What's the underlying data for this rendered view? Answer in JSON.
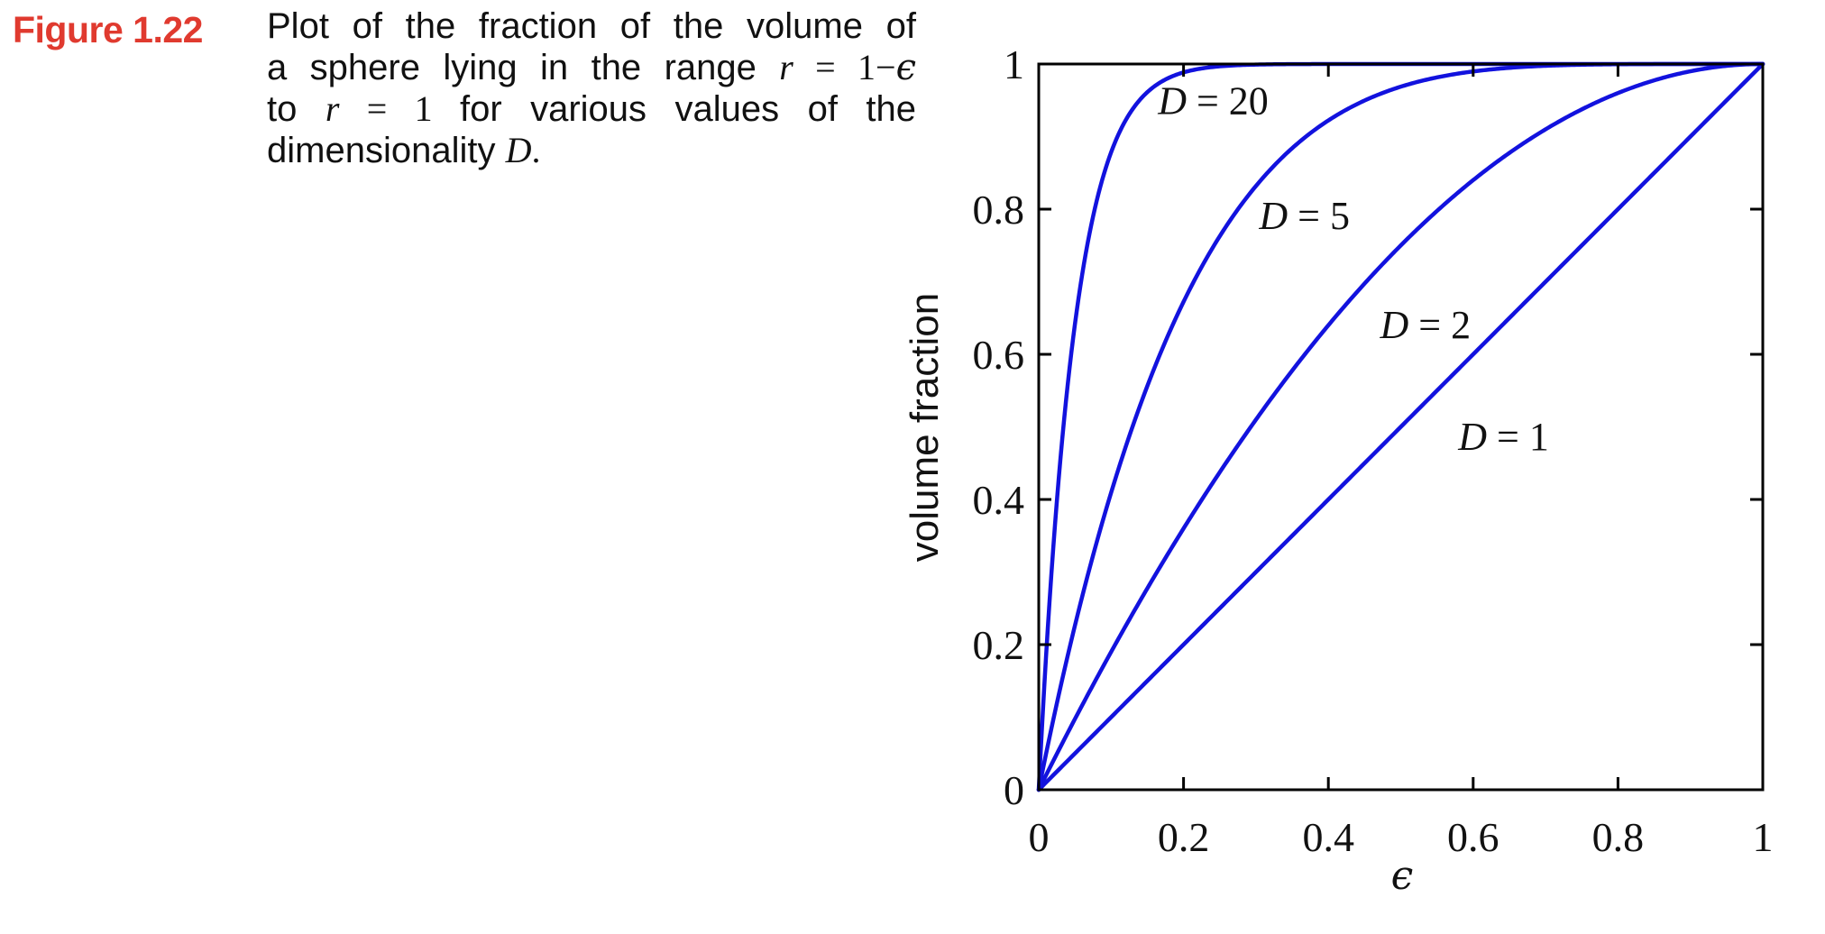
{
  "figure": {
    "label": "Figure 1.22",
    "label_color": "#E03A2F",
    "caption_lines": [
      [
        {
          "t": "Plot of the fraction of the volume of",
          "s": "sans"
        }
      ],
      [
        {
          "t": "a sphere lying in the range ",
          "s": "sans"
        },
        {
          "t": "r",
          "s": "it"
        },
        {
          "t": " = 1",
          "s": "rm"
        },
        {
          "t": "−",
          "s": "rm"
        },
        {
          "t": "ϵ",
          "s": "eps"
        }
      ],
      [
        {
          "t": "to ",
          "s": "sans"
        },
        {
          "t": "r",
          "s": "it"
        },
        {
          "t": " = 1 ",
          "s": "rm"
        },
        {
          "t": "for various values of the",
          "s": "sans"
        }
      ],
      [
        {
          "t": "dimensionality ",
          "s": "sans"
        },
        {
          "t": "D",
          "s": "it"
        },
        {
          "t": ".",
          "s": "rm"
        }
      ]
    ]
  },
  "chart_data": {
    "type": "line",
    "title": "",
    "xlabel": "ϵ",
    "ylabel": "volume fraction",
    "xlim": [
      0,
      1
    ],
    "ylim": [
      0,
      1
    ],
    "x_tick_values": [
      0,
      0.2,
      0.4,
      0.6,
      0.8,
      1
    ],
    "x_tick_labels": [
      "0",
      "0.2",
      "0.4",
      "0.6",
      "0.8",
      "1"
    ],
    "y_tick_values": [
      0,
      0.2,
      0.4,
      0.6,
      0.8,
      1
    ],
    "y_tick_labels": [
      "0",
      "0.2",
      "0.4",
      "0.6",
      "0.8",
      "1"
    ],
    "grid": false,
    "box": true,
    "legend": "inline-curve-labels",
    "curve_color": "#1212DE",
    "axis_color": "#000000",
    "formula": "volume fraction = 1 − (1 − ϵ)^D",
    "series": [
      {
        "name": "D = 20",
        "var": "D",
        "value": 20,
        "label_x": 0.241,
        "label_y": 0.95,
        "points": [
          [
            0,
            0
          ],
          [
            0.05,
            0.642
          ],
          [
            0.1,
            0.878
          ],
          [
            0.15,
            0.961
          ],
          [
            0.2,
            0.988
          ],
          [
            0.3,
            0.999
          ],
          [
            0.5,
            1
          ],
          [
            1,
            1
          ]
        ]
      },
      {
        "name": "D = 5",
        "var": "D",
        "value": 5,
        "label_x": 0.367,
        "label_y": 0.791,
        "points": [
          [
            0,
            0
          ],
          [
            0.1,
            0.41
          ],
          [
            0.2,
            0.672
          ],
          [
            0.3,
            0.832
          ],
          [
            0.4,
            0.922
          ],
          [
            0.5,
            0.969
          ],
          [
            0.6,
            0.99
          ],
          [
            0.8,
            0.9997
          ],
          [
            1,
            1
          ]
        ]
      },
      {
        "name": "D = 2",
        "var": "D",
        "value": 2,
        "label_x": 0.534,
        "label_y": 0.641,
        "points": [
          [
            0,
            0
          ],
          [
            0.1,
            0.19
          ],
          [
            0.2,
            0.36
          ],
          [
            0.3,
            0.51
          ],
          [
            0.4,
            0.64
          ],
          [
            0.5,
            0.75
          ],
          [
            0.6,
            0.84
          ],
          [
            0.7,
            0.91
          ],
          [
            0.8,
            0.96
          ],
          [
            0.9,
            0.99
          ],
          [
            1,
            1
          ]
        ]
      },
      {
        "name": "D = 1",
        "var": "D",
        "value": 1,
        "label_x": 0.642,
        "label_y": 0.487,
        "points": [
          [
            0,
            0
          ],
          [
            0.2,
            0.2
          ],
          [
            0.4,
            0.4
          ],
          [
            0.6,
            0.6
          ],
          [
            0.8,
            0.8
          ],
          [
            1,
            1
          ]
        ]
      }
    ]
  }
}
